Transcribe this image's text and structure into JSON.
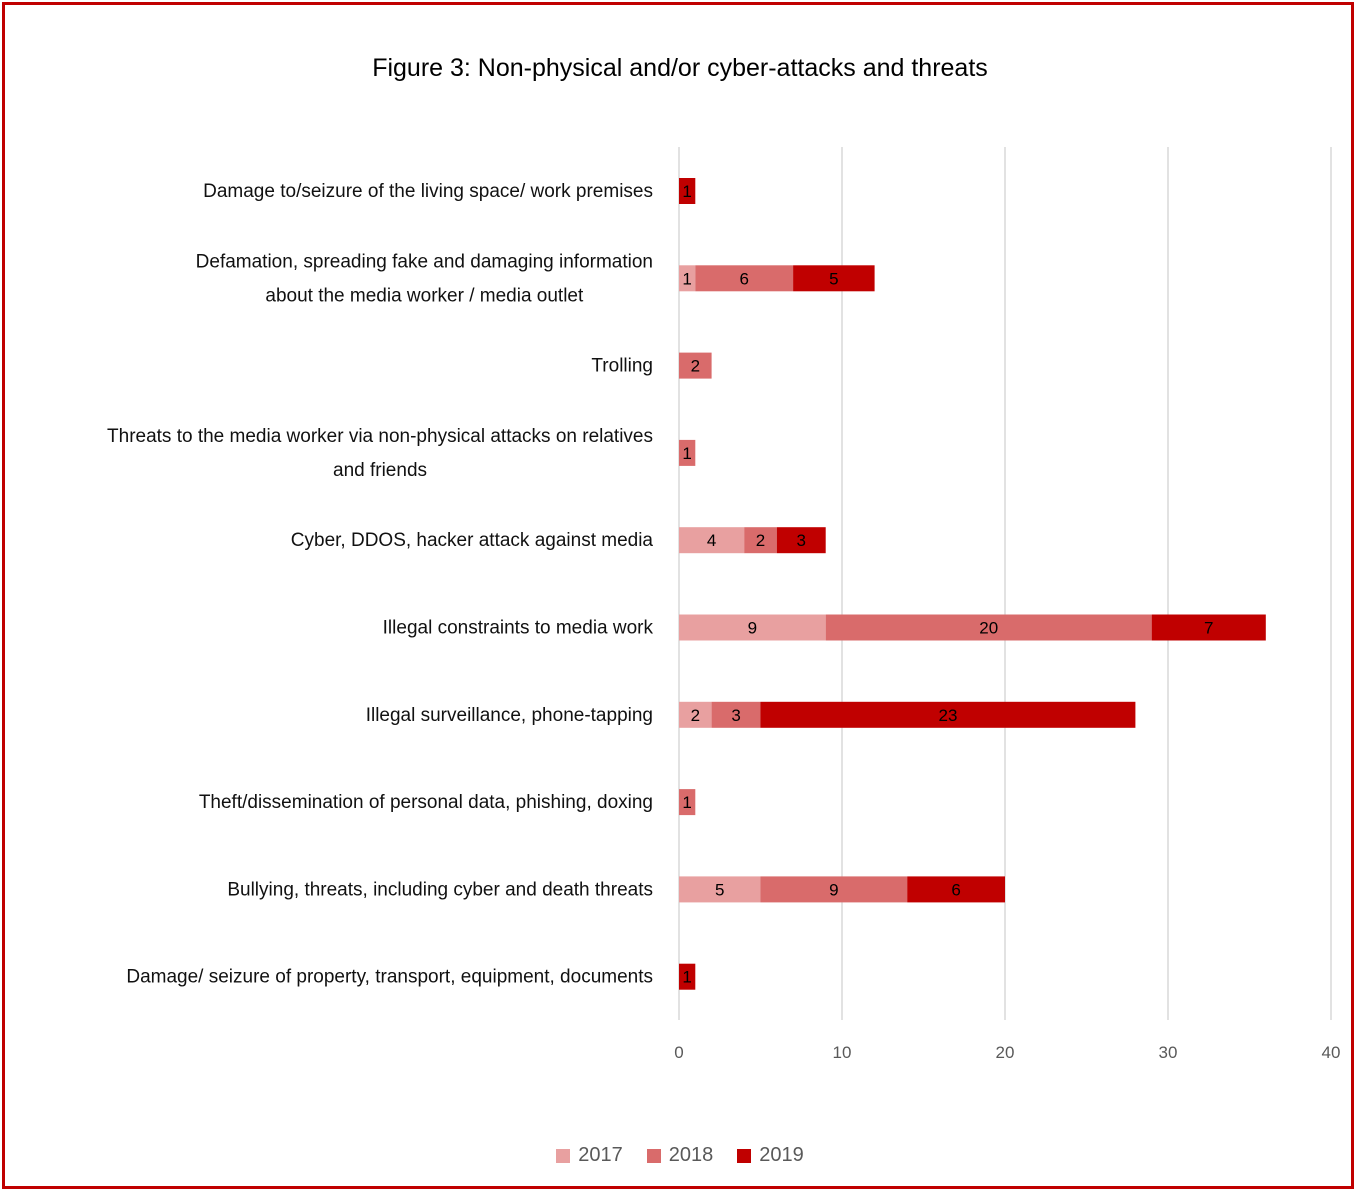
{
  "chart_data": {
    "type": "bar",
    "orientation": "horizontal",
    "stacked": true,
    "title": "Figure 3: Non-physical and/or cyber-attacks and threats",
    "categories": [
      "Damage to/seizure of the living space/ work premises",
      "Defamation, spreading fake and damaging information about the media worker / media outlet",
      "Trolling",
      "Threats to the media worker via non-physical attacks on relatives and friends",
      "Cyber, DDOS, hacker attack against media",
      "Illegal constraints to media work",
      "Illegal surveillance, phone-tapping",
      "Theft/dissemination of personal data, phishing, doxing",
      "Bullying, threats, including cyber and death threats",
      "Damage/ seizure of property, transport, equipment, documents"
    ],
    "category_lines": [
      [
        "Damage to/seizure of the living space/ work premises"
      ],
      [
        "Defamation, spreading fake and damaging information",
        "about the media worker / media outlet"
      ],
      [
        "Trolling"
      ],
      [
        "Threats to the media worker via non-physical attacks on relatives",
        "and friends"
      ],
      [
        "Cyber, DDOS, hacker attack against media"
      ],
      [
        "Illegal constraints to media work"
      ],
      [
        "Illegal surveillance, phone-tapping"
      ],
      [
        "Theft/dissemination of personal data, phishing, doxing"
      ],
      [
        "Bullying, threats, including cyber and death threats"
      ],
      [
        "Damage/ seizure of property, transport, equipment, documents"
      ]
    ],
    "series": [
      {
        "name": "2017",
        "color": "#e8a0a0",
        "values": [
          0,
          1,
          0,
          0,
          4,
          9,
          2,
          0,
          5,
          0
        ]
      },
      {
        "name": "2018",
        "color": "#d96b6b",
        "values": [
          0,
          6,
          2,
          1,
          2,
          20,
          3,
          1,
          9,
          0
        ]
      },
      {
        "name": "2019",
        "color": "#c00000",
        "values": [
          1,
          5,
          0,
          0,
          3,
          7,
          23,
          0,
          6,
          1
        ]
      }
    ],
    "xlim": [
      0,
      40
    ],
    "xticks": [
      0,
      10,
      20,
      30,
      40
    ],
    "grid": true,
    "legend_position": "bottom"
  }
}
